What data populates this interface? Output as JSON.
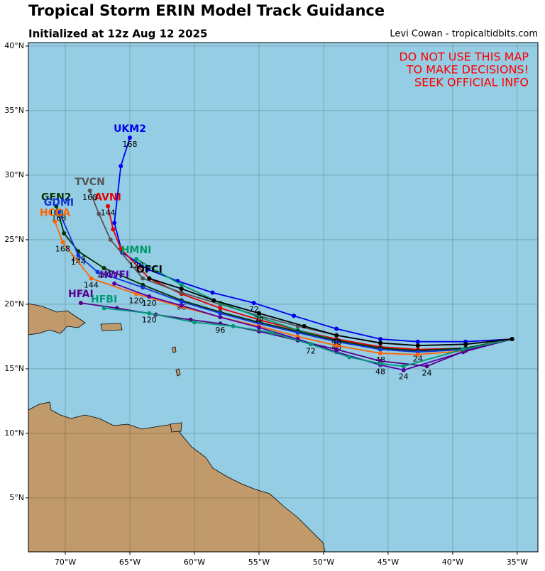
{
  "chart_data": {
    "type": "track",
    "title": "Tropical Storm ERIN Model Track Guidance",
    "subtitle": "Initialized at 12z Aug 12 2025",
    "credit": "Levi Cowan - tropicaltidbits.com",
    "warning": [
      "DO NOT USE THIS MAP",
      "TO MAKE DECISIONS!",
      "SEEK OFFICIAL INFO"
    ],
    "xlim": [
      -72.86,
      -33.4
    ],
    "ylim": [
      0.82,
      40.27
    ],
    "xticks": [
      {
        "value": -70,
        "label": "70°W"
      },
      {
        "value": -65,
        "label": "65°W"
      },
      {
        "value": -60,
        "label": "60°W"
      },
      {
        "value": -55,
        "label": "55°W"
      },
      {
        "value": -50,
        "label": "50°W"
      },
      {
        "value": -45,
        "label": "45°W"
      },
      {
        "value": -40,
        "label": "40°W"
      },
      {
        "value": -35,
        "label": "35°W"
      }
    ],
    "yticks": [
      {
        "value": 5,
        "label": "5°N"
      },
      {
        "value": 10,
        "label": "10°N"
      },
      {
        "value": 15,
        "label": "15°N"
      },
      {
        "value": 20,
        "label": "20°N"
      },
      {
        "value": 25,
        "label": "25°N"
      },
      {
        "value": 30,
        "label": "30°N"
      },
      {
        "value": 35,
        "label": "35°N"
      },
      {
        "value": 40,
        "label": "40°N"
      }
    ],
    "grid": true,
    "series": [
      {
        "name": "UKM2",
        "color": "#0000ee",
        "x": [
          -35.4,
          -39,
          -42.7,
          -45.6,
          -49,
          -52.3,
          -55.4,
          -58.6,
          -61.3,
          -63.6,
          -65.6,
          -66.2,
          -65.7,
          -65
        ],
        "y": [
          17.3,
          17.1,
          17.1,
          17.3,
          18.1,
          19.1,
          20.1,
          20.9,
          21.8,
          22.7,
          24,
          26.3,
          30.7,
          32.9
        ],
        "hours": [
          null,
          null,
          null,
          null,
          null,
          null,
          72,
          null,
          null,
          null,
          null,
          null,
          null,
          168
        ]
      },
      {
        "name": "AVNI",
        "color": "#e60000",
        "x": [
          -35.4,
          -39,
          -42.7,
          -45.6,
          -49,
          -52,
          -55,
          -58,
          -61,
          -63.5,
          -65.7,
          -66.3,
          -66.7
        ],
        "y": [
          17.3,
          16.6,
          16.5,
          16.7,
          17.3,
          18,
          18.8,
          19.7,
          20.8,
          22,
          24.3,
          25.8,
          27.6
        ],
        "hours": [
          null,
          null,
          null,
          null,
          null,
          null,
          null,
          null,
          null,
          null,
          null,
          null,
          144
        ]
      },
      {
        "name": "TVCN",
        "color": "#555555",
        "x": [
          -35.4,
          -39,
          -42.7,
          -45.6,
          -49,
          -52,
          -55,
          -58,
          -61,
          -64,
          -66.5,
          -67.4,
          -68.1
        ],
        "y": [
          17.3,
          16.9,
          16.8,
          17,
          17.6,
          18.3,
          19.1,
          20,
          20.9,
          22,
          25,
          27,
          28.8
        ],
        "hours": [
          null,
          null,
          null,
          null,
          null,
          null,
          null,
          null,
          null,
          null,
          null,
          null,
          168
        ]
      },
      {
        "name": "HMNI",
        "color": "#009966",
        "x": [
          -35.4,
          -39,
          -42.7,
          -45.6,
          -49,
          -52,
          -55,
          -58,
          -61,
          -64.5
        ],
        "y": [
          17.3,
          16.5,
          16.3,
          16.5,
          17.2,
          18,
          19,
          20.1,
          21.5,
          23.5
        ],
        "hours": [
          null,
          null,
          24,
          null,
          48,
          null,
          null,
          null,
          null,
          120
        ]
      },
      {
        "name": "GFN2",
        "color": "#003300",
        "x": [
          -35.4,
          -39,
          -42.7,
          -45.6,
          -49,
          -52,
          -55,
          -58,
          -61,
          -64,
          -67,
          -69,
          -70.1,
          -70.7
        ],
        "y": [
          17.3,
          16.6,
          16.4,
          16.6,
          17.2,
          17.9,
          18.6,
          19.4,
          20.3,
          21.5,
          22.8,
          24.1,
          25.5,
          27.6
        ],
        "hours": [
          null,
          null,
          null,
          null,
          null,
          null,
          null,
          null,
          96,
          null,
          120,
          144,
          null,
          168
        ]
      },
      {
        "name": "GDMI",
        "color": "#1133dd",
        "x": [
          -35.4,
          -39,
          -42.7,
          -45.6,
          -49,
          -52,
          -55,
          -58,
          -61,
          -64,
          -67.5,
          -69,
          -70.5
        ],
        "y": [
          17.3,
          16.5,
          16.3,
          16.5,
          17.1,
          17.8,
          18.5,
          19.3,
          20.2,
          21.3,
          22.5,
          23.8,
          27.2
        ],
        "hours": [
          null,
          null,
          null,
          null,
          null,
          null,
          null,
          null,
          null,
          null,
          null,
          144,
          168
        ]
      },
      {
        "name": "HCCA",
        "color": "#ff6600",
        "x": [
          -35.4,
          -39,
          -42.7,
          -45.6,
          -49,
          -52,
          -55,
          -58,
          -61,
          -64.5,
          -68,
          -70.2,
          -70.8
        ],
        "y": [
          17.3,
          16.4,
          16.1,
          16.2,
          16.8,
          17.5,
          18.3,
          19,
          19.8,
          20.8,
          22,
          24.8,
          26.4
        ],
        "hours": [
          null,
          null,
          null,
          48,
          null,
          null,
          null,
          null,
          null,
          120,
          144,
          168,
          null
        ]
      },
      {
        "name": "HWFI",
        "color": "#5500aa",
        "x": [
          -35.4,
          -39.2,
          -43.8,
          -45.6,
          -49,
          -52,
          -55,
          -58,
          -61,
          -63.5,
          -66.2
        ],
        "y": [
          17.3,
          16.3,
          14.9,
          15.3,
          16.3,
          17.3,
          18.2,
          19,
          19.9,
          20.6,
          21.6
        ],
        "hours": [
          null,
          null,
          24,
          48,
          null,
          null,
          null,
          null,
          null,
          120,
          null
        ]
      },
      {
        "name": "HFAI",
        "color": "#550088",
        "x": [
          -35.4,
          -39,
          -42,
          -45.6,
          -49,
          -52,
          -55,
          -58,
          -60.3,
          -63,
          -66,
          -68.8
        ],
        "y": [
          17.3,
          16.4,
          15.2,
          15.6,
          16.5,
          17.2,
          17.9,
          18.5,
          18.8,
          19.2,
          19.7,
          20.1
        ],
        "hours": [
          null,
          null,
          24,
          null,
          null,
          null,
          null,
          96,
          null,
          null,
          null,
          null
        ]
      },
      {
        "name": "HFBI",
        "color": "#009977",
        "x": [
          -35.4,
          -39.2,
          -43.8,
          -45.6,
          -48,
          -51,
          -54,
          -57,
          -60,
          -63.5,
          -67
        ],
        "y": [
          17.3,
          16.5,
          15.2,
          15.4,
          15.9,
          16.9,
          17.8,
          18.3,
          18.6,
          19.3,
          19.7
        ],
        "hours": [
          null,
          null,
          null,
          null,
          null,
          72,
          null,
          null,
          null,
          120,
          null
        ]
      },
      {
        "name": "OFCI",
        "color": "#000000",
        "x": [
          -35.4,
          -39,
          -42.7,
          -45.6,
          -49,
          -51.5,
          -55,
          -58.5,
          -61,
          -63.5
        ],
        "y": [
          17.3,
          16.9,
          16.8,
          17,
          17.6,
          18.3,
          19.3,
          20.3,
          21.2,
          22
        ],
        "hours": [
          null,
          null,
          null,
          null,
          48,
          null,
          72,
          null,
          null,
          null
        ]
      }
    ]
  }
}
